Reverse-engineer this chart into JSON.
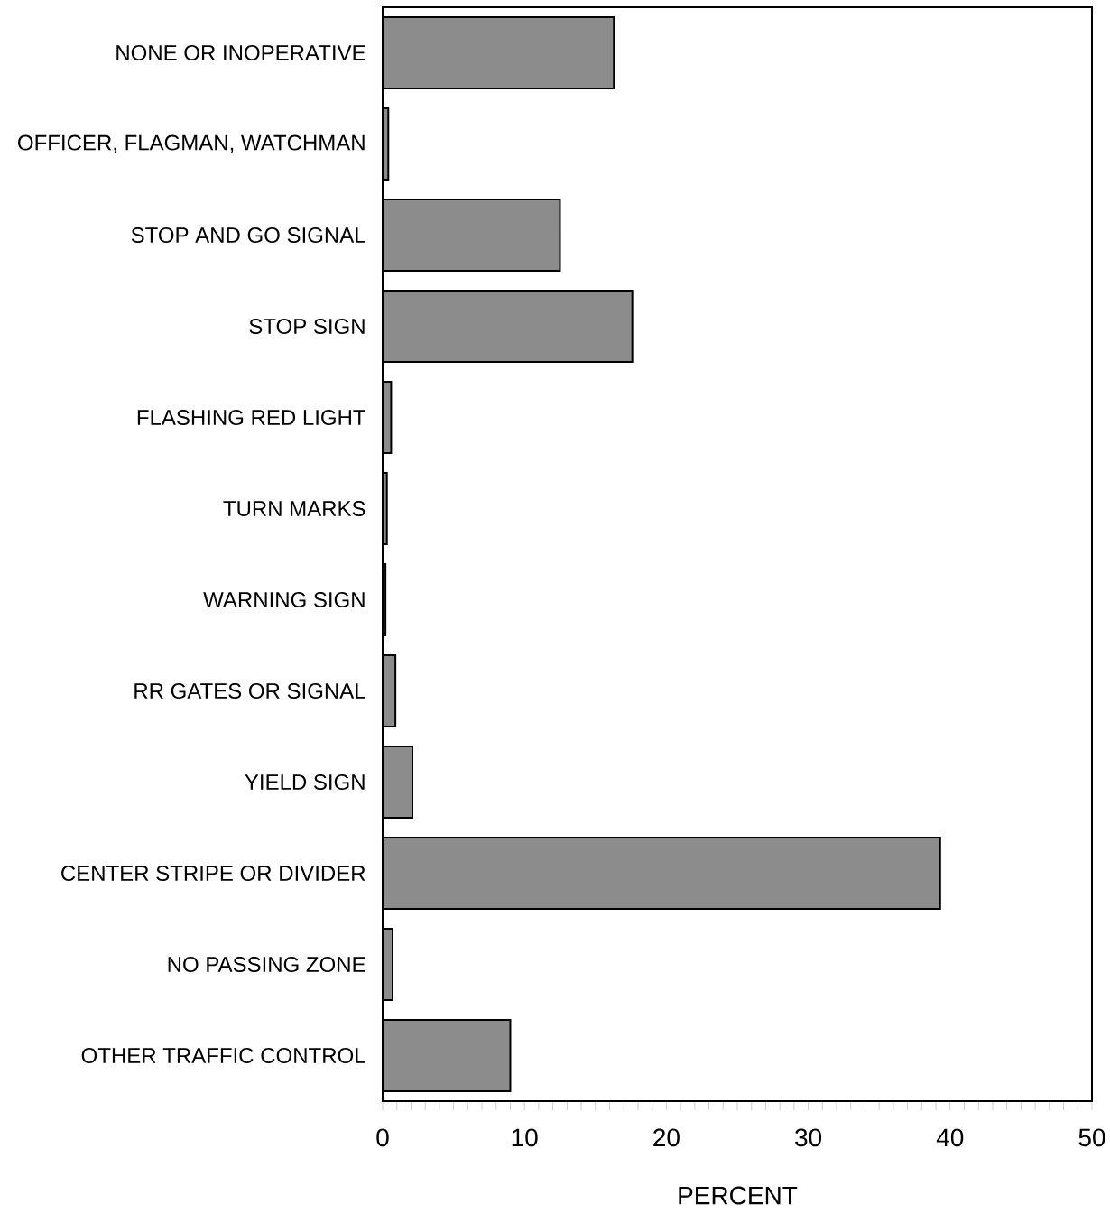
{
  "chart_data": {
    "type": "bar",
    "orientation": "horizontal",
    "xlabel": "PERCENT",
    "color": "#8c8c8c",
    "categories": [
      "NONE OR INOPERATIVE",
      "OFFICER, FLAGMAN, WATCHMAN",
      "STOP AND GO SIGNAL",
      "STOP SIGN",
      "FLASHING RED LIGHT",
      "TURN MARKS",
      "WARNING SIGN",
      "RR GATES OR SIGNAL",
      "YIELD SIGN",
      "CENTER STRIPE OR DIVIDER",
      "NO PASSING ZONE",
      "OTHER TRAFFIC CONTROL"
    ],
    "values": [
      16.3,
      0.4,
      12.5,
      17.6,
      0.6,
      0.3,
      0.2,
      0.9,
      2.1,
      39.3,
      0.7,
      9.0
    ],
    "xlim": [
      0,
      50
    ],
    "xticks": [
      0,
      {
        "value": 1,
        "label": null
      },
      {
        "value": 2,
        "label": null
      },
      {
        "value": 3,
        "label": null
      },
      {
        "value": 4,
        "label": null
      },
      {
        "value": 5,
        "label": null
      },
      {
        "value": 6,
        "label": null
      },
      {
        "value": 7,
        "label": null
      },
      {
        "value": 8,
        "label": null
      },
      {
        "value": 9,
        "label": null
      },
      10,
      {
        "value": 11,
        "label": null
      },
      {
        "value": 12,
        "label": null
      },
      {
        "value": 13,
        "label": null
      },
      {
        "value": 14,
        "label": null
      },
      {
        "value": 15,
        "label": null
      },
      {
        "value": 16,
        "label": null
      },
      {
        "value": 17,
        "label": null
      },
      {
        "value": 18,
        "label": null
      },
      {
        "value": 19,
        "label": null
      },
      20,
      {
        "value": 21,
        "label": null
      },
      {
        "value": 22,
        "label": null
      },
      {
        "value": 23,
        "label": null
      },
      {
        "value": 24,
        "label": null
      },
      {
        "value": 25,
        "label": null
      },
      {
        "value": 26,
        "label": null
      },
      {
        "value": 27,
        "label": null
      },
      {
        "value": 28,
        "label": null
      },
      {
        "value": 29,
        "label": null
      },
      30,
      {
        "value": 31,
        "label": null
      },
      {
        "value": 32,
        "label": null
      },
      {
        "value": 33,
        "label": null
      },
      {
        "value": 34,
        "label": null
      },
      {
        "value": 35,
        "label": null
      },
      {
        "value": 36,
        "label": null
      },
      {
        "value": 37,
        "label": null
      },
      {
        "value": 38,
        "label": null
      },
      {
        "value": 39,
        "label": null
      },
      40,
      {
        "value": 41,
        "label": null
      },
      {
        "value": 42,
        "label": null
      },
      {
        "value": 43,
        "label": null
      },
      {
        "value": 44,
        "label": null
      },
      {
        "value": 45,
        "label": null
      },
      {
        "value": 46,
        "label": null
      },
      {
        "value": 47,
        "label": null
      },
      {
        "value": 48,
        "label": null
      },
      {
        "value": 49,
        "label": null
      },
      50
    ]
  }
}
